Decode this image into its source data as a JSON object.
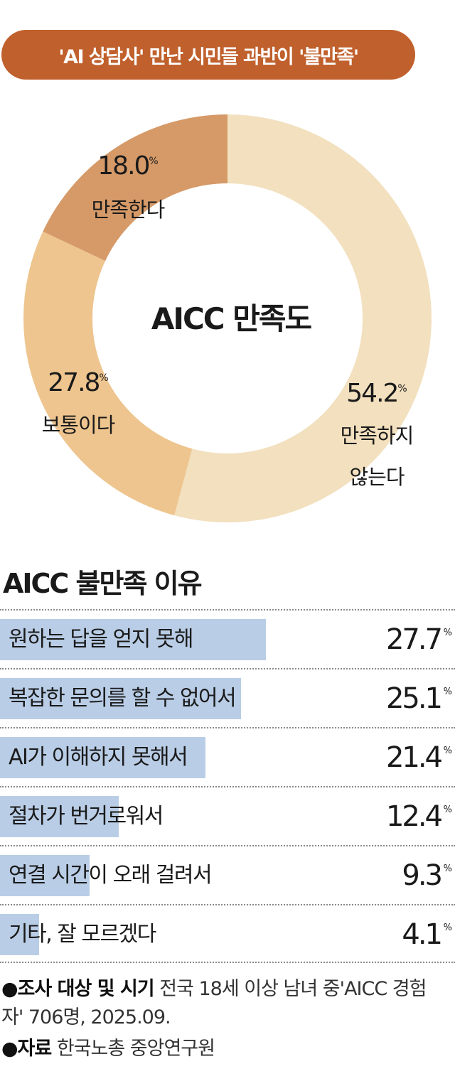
{
  "headline": "'AI 상담사' 만난 시민들 과반이 '불만족'",
  "chart_data": [
    {
      "type": "pie",
      "title": "AICC 만족도",
      "unit": "%",
      "slices": [
        {
          "label": "만족하지 않는다",
          "value": 54.2,
          "color": "#f2e0be"
        },
        {
          "label": "보통이다",
          "value": 27.8,
          "color": "#eec58f"
        },
        {
          "label": "만족한다",
          "value": 18.0,
          "color": "#d69a68"
        }
      ],
      "value_labels": [
        "54.2",
        "27.8",
        "18.0"
      ],
      "label_lines": [
        [
          "만족하지",
          "않는다"
        ],
        [
          "보통이다"
        ],
        [
          "만족한다"
        ]
      ]
    },
    {
      "type": "bar",
      "title": "AICC 불만족 이유",
      "unit": "%",
      "categories": [
        "원하는 답을 얻지 못해",
        "복잡한 문의를 할 수 없어서",
        "AI가 이해하지 못해서",
        "절차가 번거로워서",
        "연결 시간이 오래 걸려서",
        "기타, 잘 모르겠다"
      ],
      "values": [
        27.7,
        25.1,
        21.4,
        12.4,
        9.3,
        4.1
      ],
      "color": "#b9cde6"
    }
  ],
  "pct_symbol": "%",
  "footnotes": {
    "survey_label": "●조사 대상 및 시기",
    "survey_text": "전국 18세 이상 남녀 중'AICC 경험자' 706명, 2025.09.",
    "source_label": "●자료",
    "source_text": "한국노총 중앙연구원"
  }
}
